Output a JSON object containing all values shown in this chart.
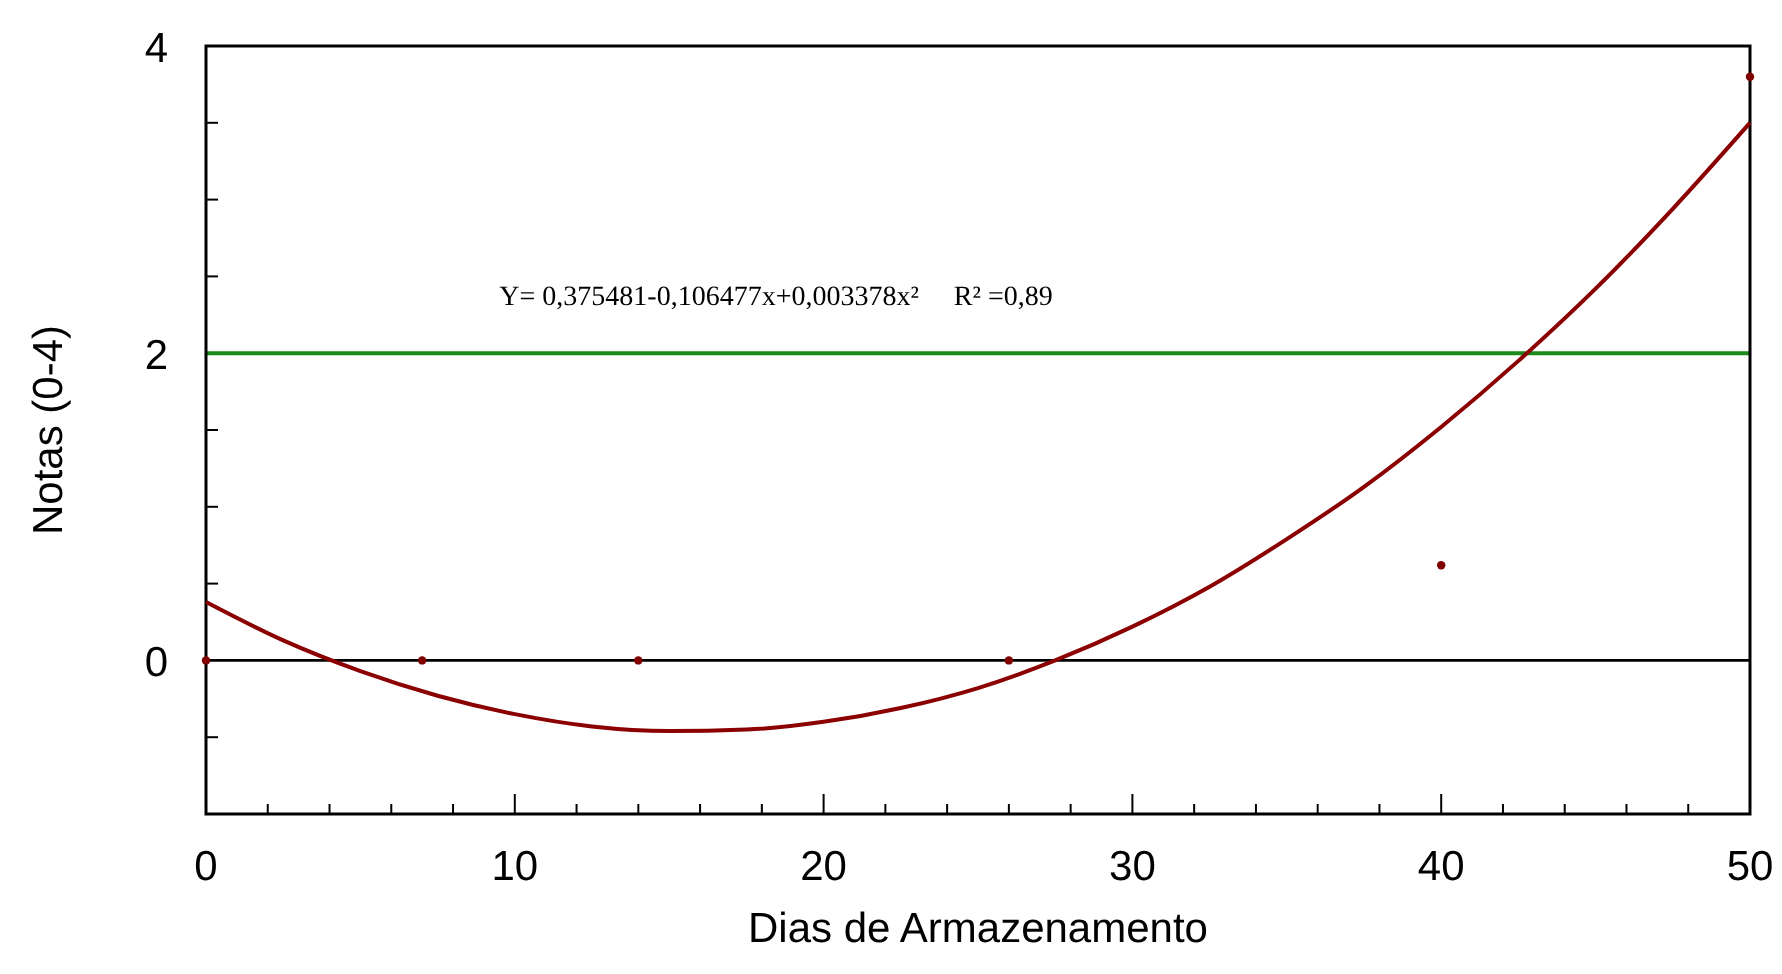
{
  "chart_data": {
    "type": "scatter",
    "xlabel": "Dias de Armazenamento",
    "ylabel": "Notas (0-4)",
    "xlim": [
      0,
      50
    ],
    "ylim": [
      -1,
      4
    ],
    "xticks": [
      0,
      {
        "value": 2,
        "label": null
      },
      {
        "value": 4,
        "label": null
      },
      {
        "value": 6,
        "label": null
      },
      {
        "value": 8,
        "label": null
      },
      10,
      {
        "value": 12,
        "label": null
      },
      {
        "value": 14,
        "label": null
      },
      {
        "value": 16,
        "label": null
      },
      {
        "value": 18,
        "label": null
      },
      20,
      {
        "value": 22,
        "label": null
      },
      {
        "value": 24,
        "label": null
      },
      {
        "value": 26,
        "label": null
      },
      {
        "value": 28,
        "label": null
      },
      30,
      {
        "value": 32,
        "label": null
      },
      {
        "value": 34,
        "label": null
      },
      {
        "value": 36,
        "label": null
      },
      {
        "value": 38,
        "label": null
      },
      40,
      {
        "value": 42,
        "label": null
      },
      {
        "value": 44,
        "label": null
      },
      {
        "value": 46,
        "label": null
      },
      {
        "value": 48,
        "label": null
      },
      50
    ],
    "yticks": [
      {
        "value": -0.5,
        "label": null
      },
      0,
      {
        "value": 0.5,
        "label": null
      },
      {
        "value": 1,
        "label": null
      },
      {
        "value": 1.5,
        "label": null
      },
      2,
      {
        "value": 2.5,
        "label": null
      },
      {
        "value": 3,
        "label": null
      },
      {
        "value": 3.5,
        "label": null
      },
      4
    ],
    "marker": "circle",
    "grid": false,
    "series": [
      {
        "type": "scatter",
        "color": "#800000",
        "x": [
          0,
          7,
          14,
          26,
          40,
          50
        ],
        "values": [
          0,
          0,
          0,
          0,
          0.62,
          3.8
        ]
      },
      {
        "type": "line",
        "color": "#8b0000",
        "marker": "none",
        "x": [
          0,
          2.5,
          5,
          7.5,
          10,
          12.5,
          15,
          17.5,
          20,
          22.5,
          25,
          27.5,
          30,
          32.5,
          35,
          37.5,
          40,
          42.5,
          45,
          47.5,
          50
        ],
        "values": [
          0.38,
          0.13,
          -0.07,
          -0.23,
          -0.35,
          -0.43,
          -0.46,
          -0.45,
          -0.4,
          -0.31,
          -0.18,
          0,
          0.22,
          0.48,
          0.79,
          1.13,
          1.52,
          1.95,
          2.42,
          2.94,
          3.5
        ]
      }
    ],
    "ref_lines": [
      {
        "axis": "y",
        "value": 0,
        "color": "#000000"
      },
      {
        "axis": "y",
        "value": 2,
        "color": "#1a8a1a"
      }
    ],
    "annotations": [
      "Y= 0,375481-0,106477x+0,003378x²     R² =0,89"
    ]
  }
}
